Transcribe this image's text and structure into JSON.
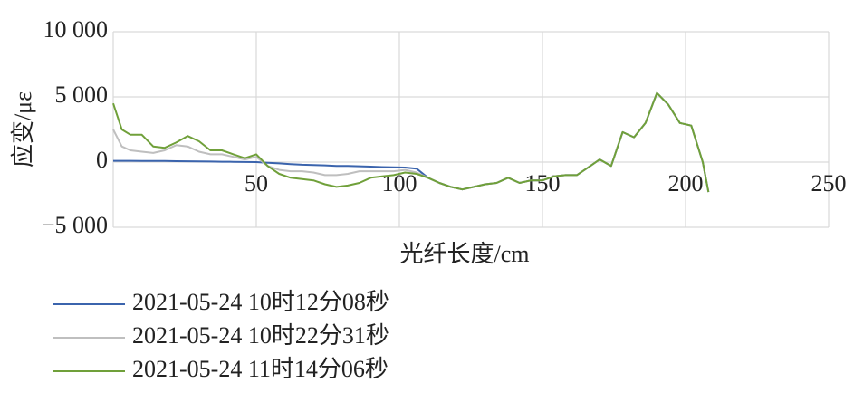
{
  "chart_data": {
    "type": "line",
    "ylabel": "应变/με",
    "xlabel": "光纤长度/cm",
    "xlim": [
      0,
      250
    ],
    "xticks": [
      50,
      100,
      150,
      200,
      250
    ],
    "ylim": [
      -5000,
      10000
    ],
    "yticks": [
      {
        "value": 10000,
        "label": "10 000"
      },
      {
        "value": 5000,
        "label": "5 000"
      },
      0,
      {
        "value": -5000,
        "label": "−5 000"
      }
    ],
    "grid": true,
    "x": [
      0,
      3,
      6,
      10,
      14,
      18,
      22,
      26,
      30,
      34,
      38,
      42,
      46,
      50,
      54,
      58,
      62,
      66,
      70,
      74,
      78,
      82,
      86,
      90,
      94,
      98,
      102,
      106,
      110,
      114,
      118,
      122,
      126,
      130,
      134,
      138,
      142,
      146,
      150,
      154,
      158,
      162,
      166,
      170,
      174,
      178,
      182,
      186,
      190,
      194,
      198,
      202,
      206,
      208
    ],
    "series": [
      {
        "name": "2021-05-24 10时12分08秒",
        "color": "#3b64ad",
        "values": [
          100,
          100,
          100,
          90,
          80,
          80,
          70,
          60,
          50,
          40,
          30,
          20,
          10,
          0,
          -50,
          -100,
          -150,
          -200,
          -220,
          -250,
          -300,
          -300,
          -320,
          -350,
          -380,
          -400,
          -420,
          -500,
          -1200,
          -1600,
          -1900,
          -2100,
          -1900,
          -1700,
          -1600,
          -1200,
          -1600,
          -1400,
          -1400,
          -1100,
          -1000,
          -1000,
          -400,
          200,
          -300,
          2300,
          1900,
          3000,
          5300,
          4400,
          3000,
          2800,
          0,
          -2300
        ]
      },
      {
        "name": "2021-05-24 10时22分31秒",
        "color": "#bfbfbf",
        "values": [
          2500,
          1200,
          900,
          800,
          700,
          900,
          1300,
          1200,
          800,
          600,
          600,
          400,
          200,
          400,
          -300,
          -600,
          -700,
          -700,
          -800,
          -1000,
          -1000,
          -900,
          -700,
          -700,
          -700,
          -700,
          -600,
          -800,
          -1200,
          -1600,
          -1900,
          -2100,
          -1900,
          -1700,
          -1600,
          -1200,
          -1600,
          -1400,
          -1400,
          -1100,
          -1000,
          -1000,
          -400,
          200,
          -300,
          2300,
          1900,
          3000,
          5300,
          4400,
          3000,
          2800,
          0,
          -2300
        ]
      },
      {
        "name": "2021-05-24 11时14分06秒",
        "color": "#70a03a",
        "values": [
          4500,
          2500,
          2100,
          2100,
          1200,
          1100,
          1500,
          2000,
          1600,
          900,
          900,
          600,
          300,
          600,
          -300,
          -900,
          -1200,
          -1300,
          -1400,
          -1700,
          -1900,
          -1800,
          -1600,
          -1200,
          -1100,
          -1000,
          -800,
          -900,
          -1200,
          -1600,
          -1900,
          -2100,
          -1900,
          -1700,
          -1600,
          -1200,
          -1600,
          -1400,
          -1400,
          -1100,
          -1000,
          -1000,
          -400,
          200,
          -300,
          2300,
          1900,
          3000,
          5300,
          4400,
          3000,
          2800,
          0,
          -2300
        ]
      }
    ]
  }
}
